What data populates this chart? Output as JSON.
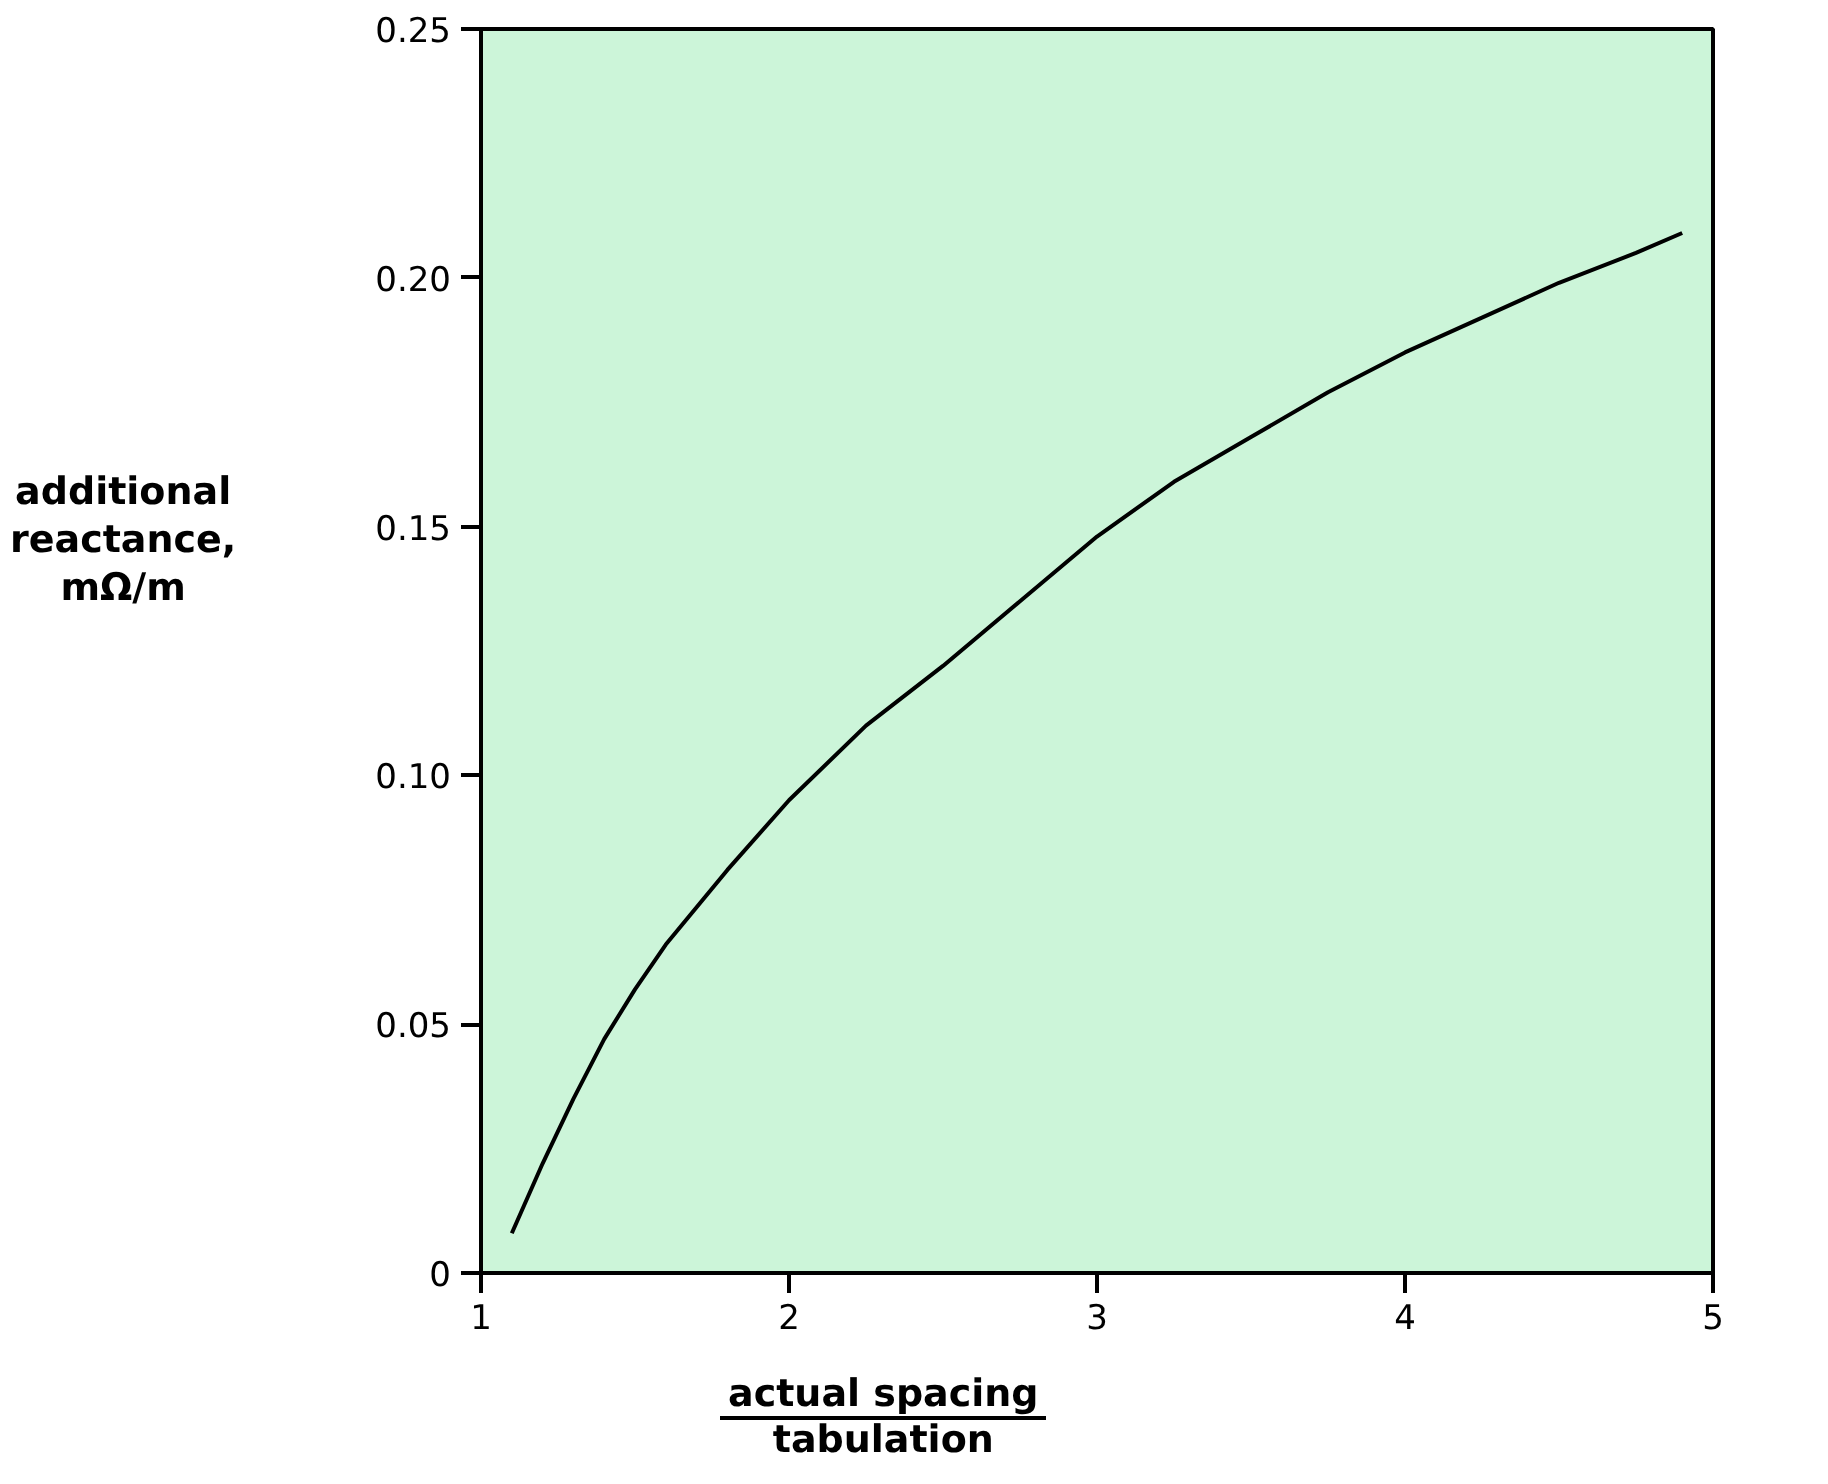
{
  "chart_data": {
    "type": "line",
    "xlabel": "actual spacing\ntabulation",
    "ylabel": "additional\nreactance,\nmΩ/m",
    "x": [
      1.1,
      1.2,
      1.3,
      1.4,
      1.5,
      1.6,
      1.8,
      2.0,
      2.25,
      2.5,
      2.75,
      3.0,
      3.25,
      3.5,
      3.75,
      4.0,
      4.25,
      4.5,
      4.75,
      4.9
    ],
    "series": [
      {
        "color": "#000000",
        "values": [
          0.008,
          0.022,
          0.035,
          0.047,
          0.057,
          0.066,
          0.081,
          0.095,
          0.11,
          0.122,
          0.135,
          0.148,
          0.159,
          0.168,
          0.177,
          0.185,
          0.192,
          0.199,
          0.205,
          0.209
        ]
      }
    ],
    "xlim": [
      1,
      5
    ],
    "ylim": [
      0,
      0.25
    ],
    "xticks": [
      1,
      2,
      3,
      4,
      5
    ],
    "yticks": [
      0,
      0.05,
      {
        "value": 0.1,
        "label": "0.10"
      },
      0.15,
      {
        "value": 0.2,
        "label": "0.20"
      },
      0.25
    ],
    "grid": false,
    "marker": "none",
    "line_style": "solid"
  }
}
